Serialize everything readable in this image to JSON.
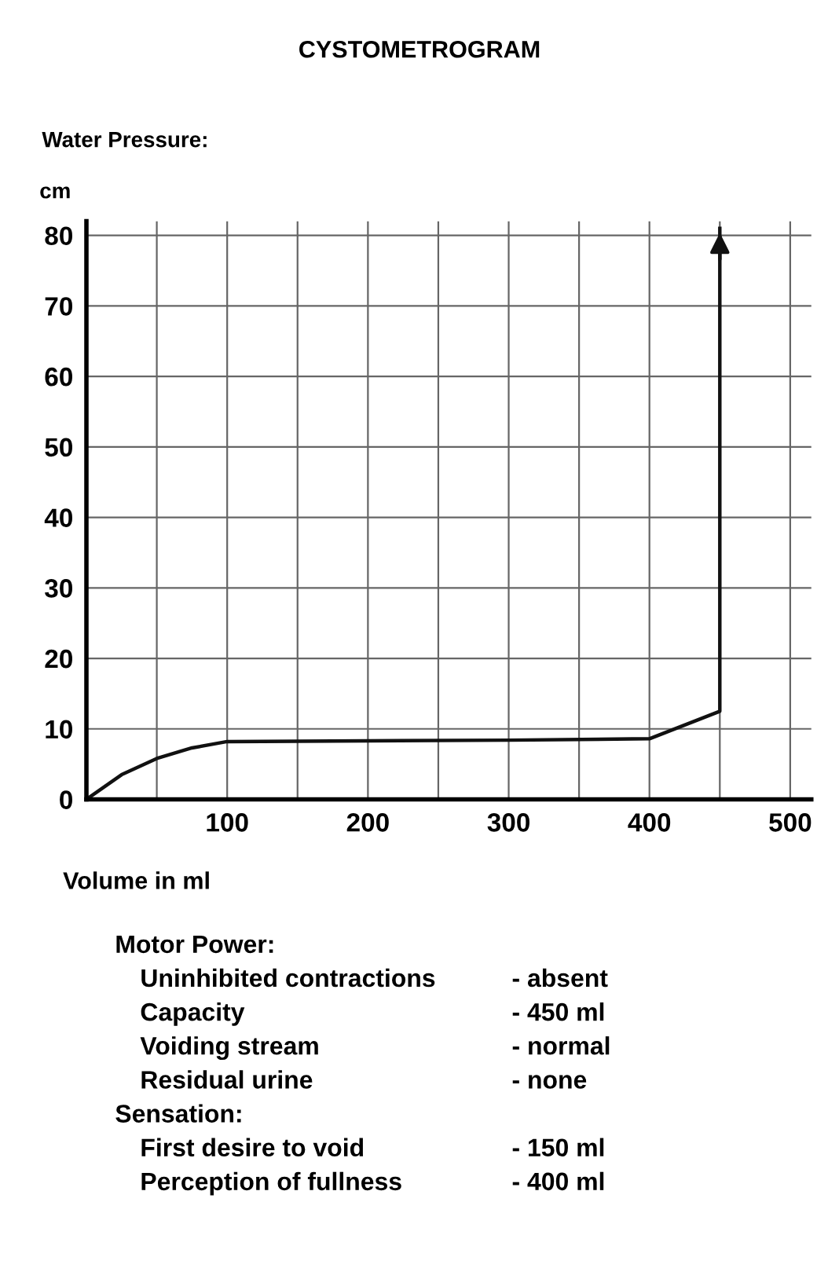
{
  "chart_data": {
    "type": "line",
    "title": "CYSTOMETROGRAM",
    "subtitle": "Water Pressure:",
    "ylabel": "cm",
    "xlabel": "Volume in ml",
    "x": [
      0,
      25,
      50,
      75,
      100,
      200,
      300,
      400,
      450,
      450,
      450
    ],
    "series": [
      {
        "color": "#111111",
        "values": [
          0,
          3.5,
          5.8,
          7.3,
          8.2,
          8.3,
          8.4,
          8.6,
          12.5,
          76,
          81
        ]
      }
    ],
    "xlim": [
      0,
      515
    ],
    "ylim": [
      0,
      82
    ],
    "xticks": [
      {
        "value": 50,
        "label": null
      },
      100,
      {
        "value": 150,
        "label": null
      },
      200,
      {
        "value": 250,
        "label": null
      },
      300,
      {
        "value": 350,
        "label": null
      },
      400,
      {
        "value": 450,
        "label": null
      },
      500
    ],
    "yticks": [
      0,
      10,
      20,
      30,
      40,
      50,
      60,
      70,
      80
    ],
    "grid": true,
    "marker": "none",
    "line_style": "solid",
    "annotations": [
      "Motor Power:",
      "Uninhibited contractions",
      "- absent",
      "Capacity",
      "- 450 ml",
      "Voiding stream",
      "- normal",
      "Residual urine",
      "- none",
      "Sensation:",
      "First desire to void",
      "- 150 ml",
      "Perception of fullness",
      "- 400 ml"
    ]
  }
}
